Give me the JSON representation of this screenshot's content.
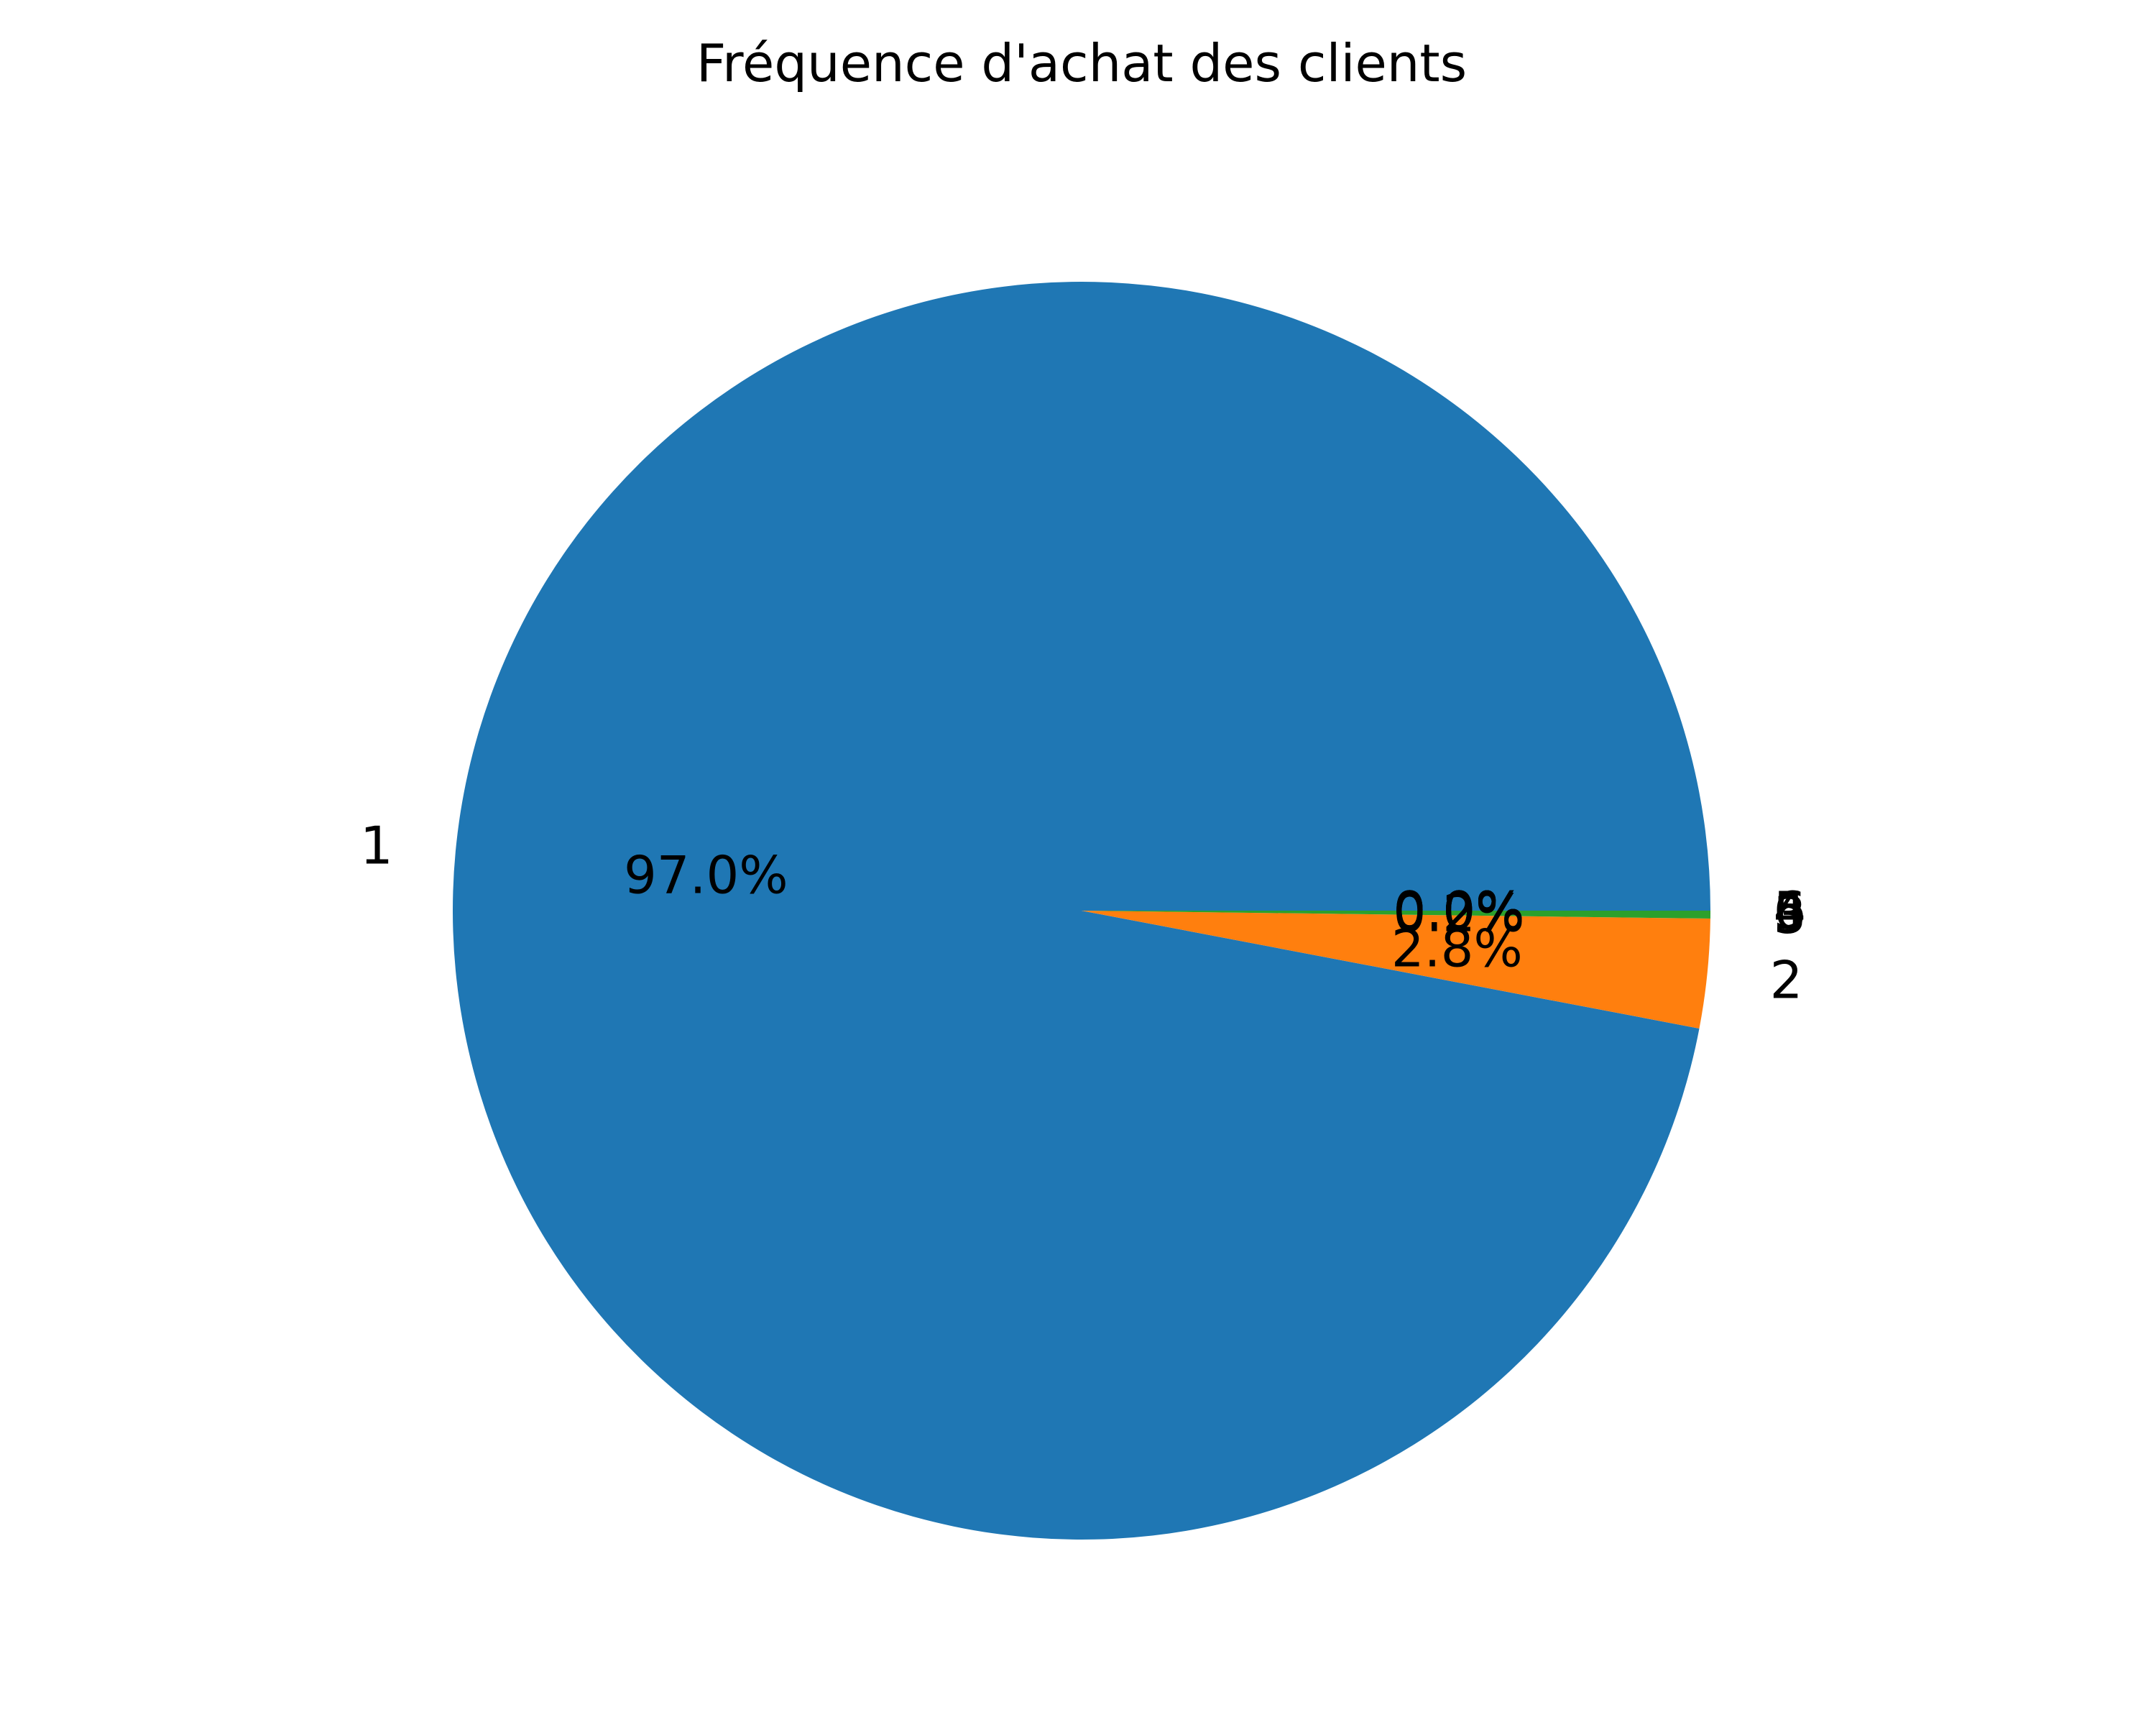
{
  "chart_data": {
    "type": "pie",
    "title": "Fréquence d'achat des clients",
    "categories": [
      "1",
      "2",
      "3",
      "4",
      "5",
      "6"
    ],
    "values": [
      97.0,
      2.8,
      0.2,
      0.0,
      0.0,
      0.0
    ],
    "percent_labels": [
      "97.0%",
      "2.8%",
      "0.2%",
      "0.0%",
      "0.0%",
      "0.0%"
    ],
    "colors": [
      "#1f77b4",
      "#ff7f0e",
      "#2ca02c",
      "#d62728",
      "#9467bd",
      "#8c564b"
    ],
    "start_angle_deg": 0,
    "direction": "counterclockwise",
    "legend": "none"
  }
}
